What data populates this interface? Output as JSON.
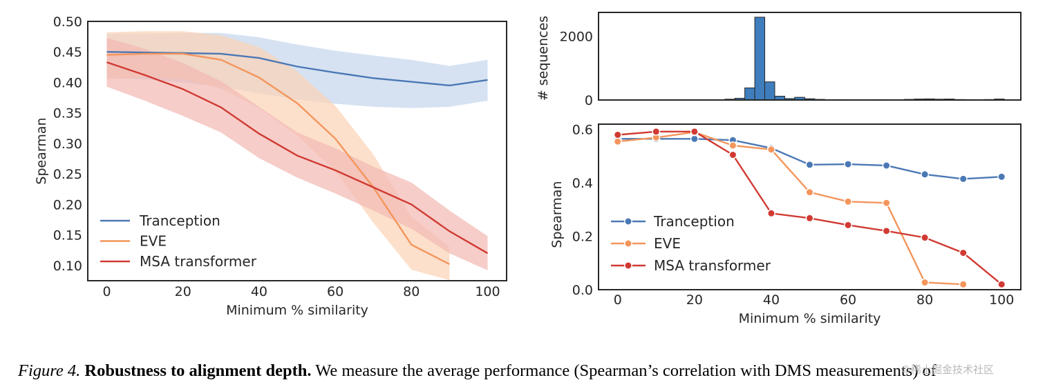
{
  "colors": {
    "tranception": "#4a78b5",
    "tranception_band": "#c5d5ec",
    "eve": "#f4955c",
    "eve_band": "#fbd3b5",
    "msa": "#d03a32",
    "msa_band": "#f2b8b2",
    "hist_bar": "#3f7dbd"
  },
  "chart_data": [
    {
      "type": "line",
      "xlabel": "Minimum % similarity",
      "ylabel": "Spearman",
      "xlim": [
        -5,
        105
      ],
      "ylim": [
        0.075,
        0.5
      ],
      "xticks": [
        "0",
        "20",
        "40",
        "60",
        "80",
        "100"
      ],
      "yticks": [
        "0.10",
        "0.15",
        "0.20",
        "0.25",
        "0.30",
        "0.35",
        "0.40",
        "0.45",
        "0.50"
      ],
      "grid": false,
      "legend": "lower-left",
      "series": [
        {
          "name": "Tranception",
          "x": [
            0,
            10,
            20,
            30,
            40,
            50,
            60,
            70,
            80,
            90,
            100
          ],
          "values": [
            0.45,
            0.449,
            0.448,
            0.447,
            0.44,
            0.426,
            0.416,
            0.407,
            0.401,
            0.395,
            0.404
          ],
          "lower": [
            0.408,
            0.405,
            0.4,
            0.393,
            0.382,
            0.372,
            0.365,
            0.36,
            0.358,
            0.36,
            0.37
          ],
          "upper": [
            0.48,
            0.48,
            0.481,
            0.481,
            0.474,
            0.462,
            0.452,
            0.444,
            0.437,
            0.427,
            0.437
          ]
        },
        {
          "name": "EVE",
          "x": [
            0,
            10,
            20,
            30,
            40,
            50,
            60,
            70,
            80,
            90
          ],
          "values": [
            0.445,
            0.447,
            0.447,
            0.437,
            0.408,
            0.366,
            0.308,
            0.228,
            0.134,
            0.102
          ],
          "lower": [
            0.405,
            0.408,
            0.405,
            0.39,
            0.358,
            0.313,
            0.255,
            0.17,
            0.093,
            0.076
          ],
          "upper": [
            0.482,
            0.484,
            0.484,
            0.477,
            0.458,
            0.418,
            0.362,
            0.282,
            0.18,
            0.13
          ]
        },
        {
          "name": "MSA transformer",
          "x": [
            0,
            10,
            20,
            30,
            40,
            50,
            60,
            70,
            80,
            90,
            100
          ],
          "values": [
            0.433,
            0.412,
            0.389,
            0.359,
            0.316,
            0.28,
            0.256,
            0.228,
            0.2,
            0.156,
            0.12
          ],
          "lower": [
            0.393,
            0.37,
            0.345,
            0.318,
            0.276,
            0.244,
            0.218,
            0.19,
            0.16,
            0.12,
            0.092
          ],
          "upper": [
            0.473,
            0.455,
            0.432,
            0.402,
            0.36,
            0.318,
            0.292,
            0.262,
            0.236,
            0.19,
            0.148
          ]
        }
      ]
    },
    {
      "type": "bar",
      "xlabel": "",
      "ylabel": "# sequences",
      "xlim": [
        -5,
        105
      ],
      "ylim": [
        0,
        2750
      ],
      "yticks": [
        "0",
        "2000"
      ],
      "bin_width": 2.6,
      "bins": [
        {
          "x": 24,
          "value": 5
        },
        {
          "x": 26.6,
          "value": 10
        },
        {
          "x": 29.2,
          "value": 25
        },
        {
          "x": 31.8,
          "value": 55
        },
        {
          "x": 34.4,
          "value": 380
        },
        {
          "x": 37.0,
          "value": 2600
        },
        {
          "x": 39.6,
          "value": 570
        },
        {
          "x": 42.2,
          "value": 120
        },
        {
          "x": 44.8,
          "value": 45
        },
        {
          "x": 47.4,
          "value": 85
        },
        {
          "x": 50.0,
          "value": 40
        },
        {
          "x": 52.6,
          "value": 20
        },
        {
          "x": 55.2,
          "value": 10
        },
        {
          "x": 57.8,
          "value": 12
        },
        {
          "x": 60.4,
          "value": 8
        },
        {
          "x": 63.0,
          "value": 10
        },
        {
          "x": 65.6,
          "value": 8
        },
        {
          "x": 68.2,
          "value": 12
        },
        {
          "x": 70.8,
          "value": 8
        },
        {
          "x": 73.4,
          "value": 10
        },
        {
          "x": 76.0,
          "value": 20
        },
        {
          "x": 78.6,
          "value": 30
        },
        {
          "x": 81.2,
          "value": 35
        },
        {
          "x": 83.8,
          "value": 25
        },
        {
          "x": 86.4,
          "value": 30
        },
        {
          "x": 89.0,
          "value": 15
        },
        {
          "x": 91.6,
          "value": 12
        },
        {
          "x": 94.2,
          "value": 10
        },
        {
          "x": 96.8,
          "value": 15
        },
        {
          "x": 99.4,
          "value": 30
        }
      ]
    },
    {
      "type": "line",
      "xlabel": "Minimum % similarity",
      "ylabel": "Spearman",
      "xlim": [
        -5,
        105
      ],
      "ylim": [
        0,
        0.62
      ],
      "xticks": [
        "0",
        "20",
        "40",
        "60",
        "80",
        "100"
      ],
      "yticks": [
        "0.0",
        "0.2",
        "0.4",
        "0.6"
      ],
      "grid": false,
      "legend": "lower-left",
      "markers": true,
      "series": [
        {
          "name": "Tranception",
          "x": [
            0,
            10,
            20,
            30,
            40,
            50,
            60,
            70,
            80,
            90,
            100
          ],
          "values": [
            0.565,
            0.565,
            0.565,
            0.56,
            0.53,
            0.468,
            0.47,
            0.465,
            0.432,
            0.415,
            0.423
          ]
        },
        {
          "name": "EVE",
          "x": [
            0,
            10,
            20,
            30,
            40,
            50,
            60,
            70,
            80,
            90
          ],
          "values": [
            0.555,
            0.57,
            0.59,
            0.54,
            0.525,
            0.365,
            0.33,
            0.325,
            0.027,
            0.02
          ]
        },
        {
          "name": "MSA transformer",
          "x": [
            0,
            10,
            20,
            30,
            40,
            50,
            60,
            70,
            80,
            90,
            100
          ],
          "values": [
            0.58,
            0.592,
            0.592,
            0.505,
            0.286,
            0.268,
            0.242,
            0.22,
            0.195,
            0.138,
            0.02
          ]
        }
      ]
    }
  ],
  "caption": {
    "label": "Figure 4.",
    "title": "Robustness to alignment depth.",
    "text": "We measure the average performance (Spearman’s correlation with DMS measurements) of"
  },
  "watermark": "©稀土掘金技术社区"
}
